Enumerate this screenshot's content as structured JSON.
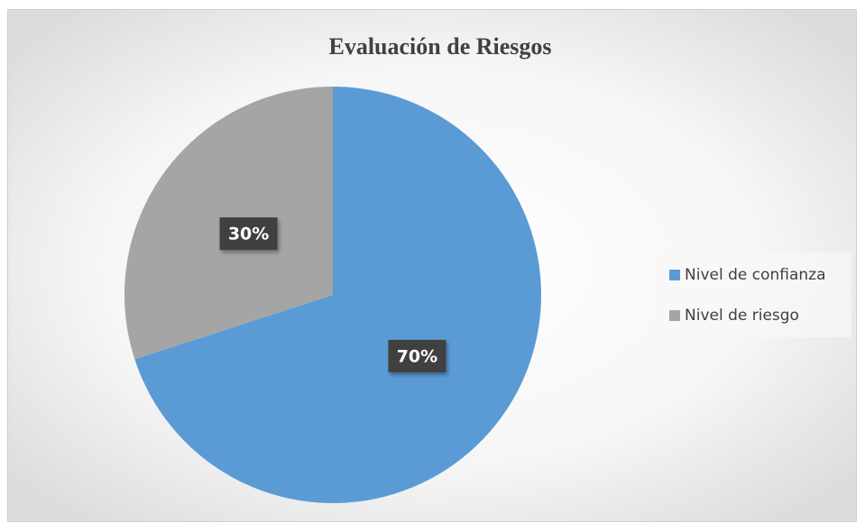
{
  "chart_data": {
    "type": "pie",
    "title": "Evaluación de Riesgos",
    "categories": [
      "Nivel de confianza",
      "Nivel de riesgo"
    ],
    "values": [
      70,
      30
    ],
    "value_labels": [
      "70%",
      "30%"
    ],
    "colors": [
      "#5b9bd5",
      "#a5a5a5"
    ],
    "legend": "right"
  }
}
